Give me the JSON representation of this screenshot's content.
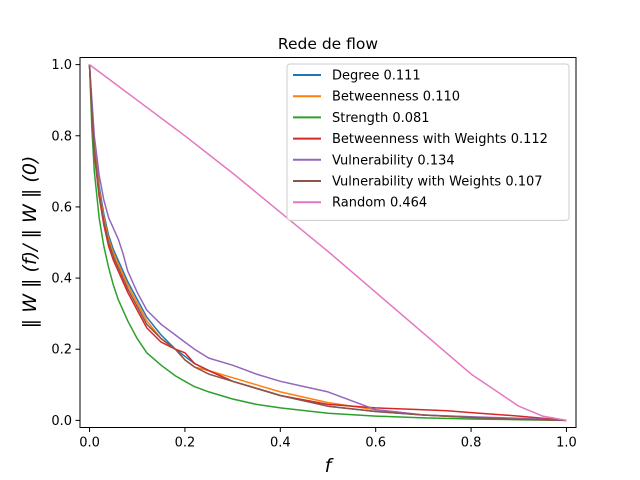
{
  "chart_data": {
    "type": "line",
    "title": "Rede de flow",
    "xlabel": "f",
    "ylabel": "‖ W ‖ (f)/ ‖ W ‖ (0)",
    "xlim": [
      -0.02,
      1.02
    ],
    "ylim": [
      -0.02,
      1.02
    ],
    "xticks": [
      0.0,
      0.2,
      0.4,
      0.6,
      0.8,
      1.0
    ],
    "xtick_labels": [
      "0.0",
      "0.2",
      "0.4",
      "0.6",
      "0.8",
      "1.0"
    ],
    "yticks": [
      0.0,
      0.2,
      0.4,
      0.6,
      0.8,
      1.0
    ],
    "ytick_labels": [
      "0.0",
      "0.2",
      "0.4",
      "0.6",
      "0.8",
      "1.0"
    ],
    "grid": false,
    "legend_position": "upper-right",
    "series": [
      {
        "name": "Degree 0.111",
        "color": "#1f77b4",
        "x": [
          0.0,
          0.005,
          0.01,
          0.02,
          0.03,
          0.04,
          0.05,
          0.06,
          0.08,
          0.1,
          0.12,
          0.15,
          0.18,
          0.2,
          0.22,
          0.25,
          0.3,
          0.35,
          0.4,
          0.5,
          0.6,
          0.7,
          0.8,
          0.9,
          1.0
        ],
        "y": [
          1.0,
          0.88,
          0.78,
          0.66,
          0.58,
          0.52,
          0.48,
          0.45,
          0.39,
          0.34,
          0.29,
          0.24,
          0.2,
          0.18,
          0.16,
          0.14,
          0.11,
          0.09,
          0.07,
          0.04,
          0.025,
          0.015,
          0.009,
          0.004,
          0.0
        ]
      },
      {
        "name": "Betweenness 0.110",
        "color": "#ff7f0e",
        "x": [
          0.0,
          0.005,
          0.01,
          0.02,
          0.03,
          0.04,
          0.05,
          0.06,
          0.08,
          0.1,
          0.12,
          0.15,
          0.18,
          0.2,
          0.22,
          0.25,
          0.3,
          0.35,
          0.4,
          0.5,
          0.6,
          0.7,
          0.8,
          0.9,
          1.0
        ],
        "y": [
          1.0,
          0.87,
          0.77,
          0.65,
          0.57,
          0.51,
          0.47,
          0.44,
          0.38,
          0.33,
          0.28,
          0.23,
          0.2,
          0.17,
          0.15,
          0.14,
          0.12,
          0.1,
          0.08,
          0.05,
          0.03,
          0.015,
          0.008,
          0.003,
          0.0
        ]
      },
      {
        "name": "Strength 0.081",
        "color": "#2ca02c",
        "x": [
          0.0,
          0.005,
          0.01,
          0.02,
          0.03,
          0.04,
          0.05,
          0.06,
          0.08,
          0.1,
          0.12,
          0.15,
          0.18,
          0.2,
          0.22,
          0.25,
          0.3,
          0.35,
          0.4,
          0.5,
          0.6,
          0.7,
          0.8,
          0.9,
          1.0
        ],
        "y": [
          1.0,
          0.82,
          0.7,
          0.57,
          0.49,
          0.43,
          0.38,
          0.34,
          0.28,
          0.23,
          0.19,
          0.155,
          0.125,
          0.11,
          0.095,
          0.08,
          0.06,
          0.045,
          0.035,
          0.02,
          0.012,
          0.007,
          0.004,
          0.002,
          0.0
        ]
      },
      {
        "name": "Betweenness with Weights 0.112",
        "color": "#d62728",
        "x": [
          0.0,
          0.005,
          0.01,
          0.02,
          0.03,
          0.04,
          0.05,
          0.06,
          0.08,
          0.1,
          0.12,
          0.15,
          0.18,
          0.2,
          0.22,
          0.25,
          0.3,
          0.35,
          0.4,
          0.5,
          0.6,
          0.7,
          0.75,
          0.8,
          0.9,
          1.0
        ],
        "y": [
          1.0,
          0.86,
          0.75,
          0.63,
          0.55,
          0.49,
          0.45,
          0.42,
          0.36,
          0.31,
          0.26,
          0.22,
          0.2,
          0.19,
          0.16,
          0.14,
          0.11,
          0.09,
          0.07,
          0.045,
          0.035,
          0.03,
          0.027,
          0.022,
          0.012,
          0.0
        ]
      },
      {
        "name": "Vulnerability 0.134",
        "color": "#9467bd",
        "x": [
          0.0,
          0.005,
          0.01,
          0.02,
          0.03,
          0.04,
          0.05,
          0.06,
          0.07,
          0.08,
          0.1,
          0.12,
          0.15,
          0.18,
          0.2,
          0.22,
          0.25,
          0.3,
          0.35,
          0.4,
          0.45,
          0.5,
          0.55,
          0.6,
          0.7,
          0.8,
          0.9,
          1.0
        ],
        "y": [
          1.0,
          0.9,
          0.8,
          0.69,
          0.62,
          0.57,
          0.54,
          0.51,
          0.47,
          0.42,
          0.36,
          0.31,
          0.27,
          0.24,
          0.22,
          0.2,
          0.175,
          0.155,
          0.13,
          0.11,
          0.095,
          0.08,
          0.055,
          0.03,
          0.015,
          0.01,
          0.006,
          0.0
        ]
      },
      {
        "name": "Vulnerability with Weights 0.107",
        "color": "#8c564b",
        "x": [
          0.0,
          0.005,
          0.01,
          0.02,
          0.03,
          0.04,
          0.05,
          0.06,
          0.08,
          0.1,
          0.12,
          0.15,
          0.18,
          0.2,
          0.22,
          0.25,
          0.3,
          0.35,
          0.4,
          0.5,
          0.6,
          0.7,
          0.8,
          0.9,
          1.0
        ],
        "y": [
          1.0,
          0.87,
          0.76,
          0.64,
          0.56,
          0.5,
          0.46,
          0.43,
          0.37,
          0.32,
          0.27,
          0.23,
          0.2,
          0.17,
          0.15,
          0.13,
          0.11,
          0.09,
          0.07,
          0.04,
          0.025,
          0.015,
          0.008,
          0.003,
          0.0
        ]
      },
      {
        "name": "Random 0.464",
        "color": "#e377c2",
        "x": [
          0.0,
          0.1,
          0.2,
          0.3,
          0.4,
          0.5,
          0.6,
          0.7,
          0.8,
          0.9,
          0.95,
          1.0
        ],
        "y": [
          1.0,
          0.9,
          0.8,
          0.695,
          0.585,
          0.475,
          0.36,
          0.245,
          0.13,
          0.04,
          0.012,
          0.0
        ]
      }
    ]
  }
}
